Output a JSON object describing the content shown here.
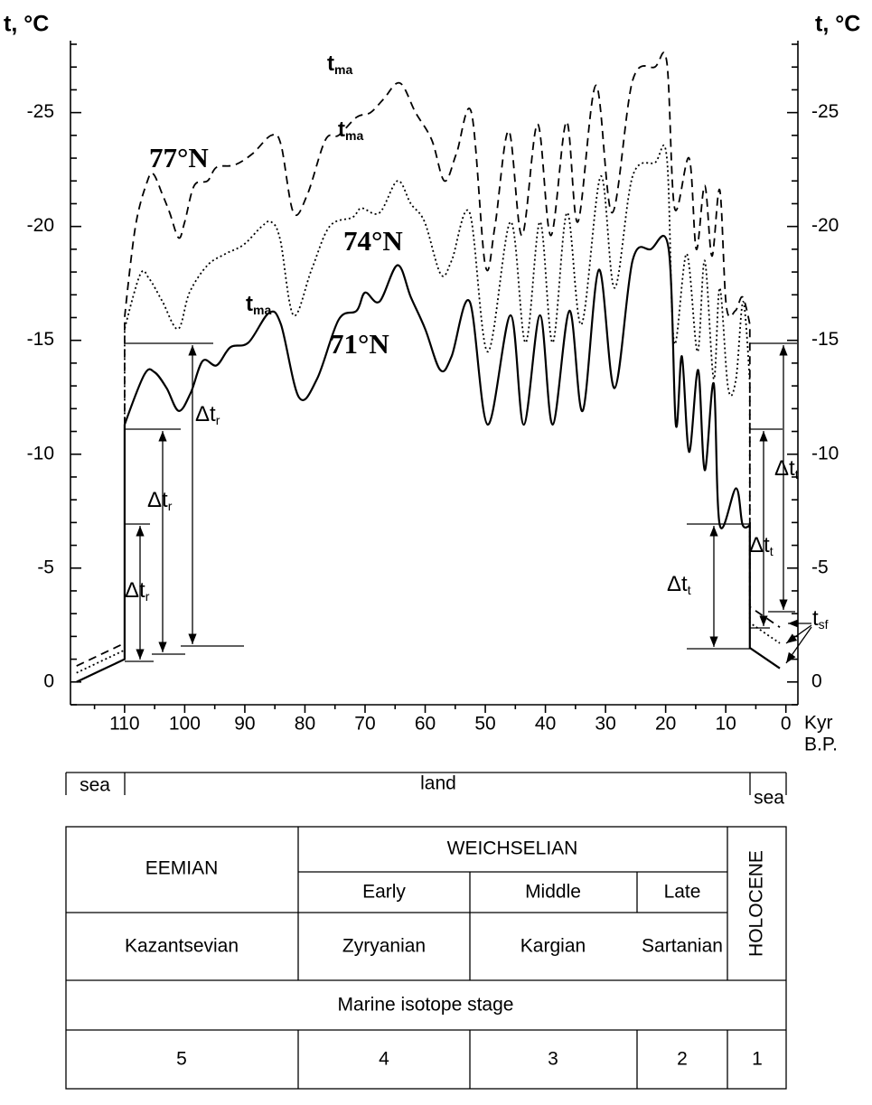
{
  "chart_data": {
    "type": "line",
    "y_label_left": "t, °C",
    "y_label_right": "t, °C",
    "x_label_top": "Kyr",
    "x_label_bottom": "B.P.",
    "xlim": [
      119,
      -2
    ],
    "xticks": [
      110,
      100,
      90,
      80,
      70,
      60,
      50,
      40,
      30,
      20,
      10,
      0
    ],
    "xminorticks": [
      115,
      105,
      95,
      85,
      75,
      65,
      55,
      45,
      35,
      25,
      15,
      5
    ],
    "ylim": [
      1,
      -28
    ],
    "yticks": [
      -25,
      -20,
      -15,
      -10,
      -5,
      0
    ],
    "yminorticks": [
      -28,
      -27,
      -26,
      -24,
      -23,
      -22,
      -21,
      -19,
      -18,
      -17,
      -16,
      -14,
      -13,
      -12,
      -11,
      -9,
      -8,
      -7,
      -6,
      -4,
      -3,
      -2,
      -1,
      1
    ],
    "series": [
      {
        "name": "77°N",
        "color": "#000000",
        "line_style": "dashed",
        "x": [
          118,
          110,
          110,
          108.2,
          106.2,
          105.2,
          103.7,
          102.5,
          101,
          100,
          98.4,
          96.2,
          94.7,
          91.7,
          88.7,
          85.6,
          84,
          81.9,
          79.6,
          76.6,
          74.4,
          71.4,
          69.1,
          66.9,
          64.2,
          61.6,
          58.9,
          56.8,
          54.8,
          52.3,
          50,
          48.4,
          46.1,
          43.9,
          41.3,
          39.1,
          36.5,
          34.6,
          31.6,
          28.9,
          25.5,
          21.8,
          19.8,
          18.5,
          16.1,
          14.9,
          13.5,
          12.3,
          11,
          9.9,
          8.4,
          7.2,
          6,
          6,
          1
        ],
        "values": [
          -0.7,
          -1.7,
          -16,
          -20,
          -22,
          -22.3,
          -21.4,
          -20.6,
          -19.5,
          -20.2,
          -21.8,
          -22,
          -22.6,
          -22.7,
          -23.2,
          -24,
          -23.6,
          -20.6,
          -21.4,
          -23.8,
          -24,
          -24.8,
          -25,
          -25.6,
          -26.3,
          -25,
          -23.8,
          -22,
          -23.2,
          -25,
          -18.3,
          -20,
          -24.2,
          -19.6,
          -24.5,
          -19.6,
          -24.6,
          -20.2,
          -26.2,
          -20.6,
          -26.4,
          -27,
          -27.2,
          -20.8,
          -23,
          -19,
          -21.8,
          -18.7,
          -21.6,
          -16.5,
          -16.3,
          -16.9,
          -15.7,
          -3.3,
          -2.4
        ]
      },
      {
        "name": "74°N",
        "color": "#000000",
        "line_style": "dotted",
        "x": [
          118,
          110,
          110,
          107.4,
          105.9,
          103.7,
          101.1,
          99.2,
          96.2,
          93.2,
          90.2,
          87.2,
          85.6,
          84.1,
          81.9,
          78.9,
          75.9,
          72.1,
          70.6,
          67.6,
          64.6,
          62.4,
          60.1,
          57.4,
          55.6,
          52.6,
          49.6,
          45.8,
          43.3,
          40.9,
          38.8,
          36.4,
          34,
          30.8,
          28.5,
          25.5,
          21.8,
          19.8,
          18.6,
          16.5,
          14.7,
          13.5,
          12,
          11,
          9.6,
          8.3,
          7.1,
          6,
          6,
          1
        ],
        "values": [
          -0.4,
          -1.4,
          -15.5,
          -17.9,
          -17.7,
          -16.7,
          -15.5,
          -17.1,
          -18.3,
          -18.8,
          -19.2,
          -20,
          -20.2,
          -19.4,
          -16.1,
          -18.1,
          -20,
          -20.4,
          -20.8,
          -20.6,
          -22,
          -21,
          -20.2,
          -17.9,
          -18.5,
          -20.6,
          -14.5,
          -20.2,
          -14.9,
          -20.2,
          -14.9,
          -20.6,
          -15.7,
          -22.2,
          -17.3,
          -22.2,
          -22.8,
          -23,
          -14.9,
          -18.8,
          -14.5,
          -18.5,
          -13.3,
          -17.3,
          -12.9,
          -13.3,
          -16.7,
          -13.1,
          -2.6,
          -1.7
        ]
      },
      {
        "name": "71°N",
        "color": "#000000",
        "line_style": "solid",
        "x": [
          118,
          110,
          110,
          106.7,
          105,
          103,
          101,
          99,
          97,
          94.7,
          92.4,
          89.4,
          86,
          84,
          81,
          78,
          74.4,
          71.4,
          70,
          67.6,
          64.6,
          62.4,
          60,
          57.5,
          55.6,
          52.6,
          49.6,
          45.8,
          43.6,
          40.9,
          38.8,
          36,
          33.8,
          31.1,
          28.5,
          25.5,
          22.5,
          19.5,
          18.3,
          17.3,
          16.1,
          14.6,
          13.5,
          12,
          11,
          8.3,
          7.2,
          6,
          6,
          1
        ],
        "values": [
          0,
          -1,
          -11.3,
          -13.5,
          -13.6,
          -12.9,
          -11.9,
          -12.7,
          -14.1,
          -13.9,
          -14.7,
          -14.9,
          -16.2,
          -15.7,
          -12.5,
          -13.3,
          -15.9,
          -16.3,
          -17.1,
          -16.7,
          -18.3,
          -16.9,
          -15.5,
          -13.7,
          -14.3,
          -16.7,
          -11.3,
          -16.1,
          -11.3,
          -16.1,
          -11.3,
          -16.3,
          -11.9,
          -18.1,
          -12.9,
          -18.5,
          -19,
          -19,
          -11.3,
          -14.3,
          -10.1,
          -13.7,
          -9.3,
          -13.1,
          -6.9,
          -8.5,
          -6.9,
          -6.9,
          -1.5,
          -0.6
        ]
      }
    ],
    "annotations": [
      {
        "text": "t",
        "sub": "ma"
      },
      {
        "text": "t",
        "sub": "ma"
      },
      {
        "text": "t",
        "sub": "ma"
      },
      {
        "text": "Δt",
        "sub": "r"
      },
      {
        "text": "Δt",
        "sub": "r"
      },
      {
        "text": "Δt",
        "sub": "r"
      },
      {
        "text": "Δt",
        "sub": "t"
      },
      {
        "text": "Δt",
        "sub": "t"
      },
      {
        "text": "Δt",
        "sub": "t"
      },
      {
        "text": "t",
        "sub": "sf"
      }
    ]
  },
  "zones": [
    "sea",
    "land",
    "sea"
  ],
  "table": {
    "rows": [
      [
        "EEMIAN",
        "WEICHSELIAN",
        "HOLOCENE"
      ],
      [
        "Early",
        "Middle",
        "Late"
      ],
      [
        "Kazantsevian",
        "Zyryanian",
        "Kargian",
        "Sartanian"
      ],
      [
        "Marine isotope stage"
      ],
      [
        5,
        4,
        3,
        2,
        1
      ]
    ]
  }
}
